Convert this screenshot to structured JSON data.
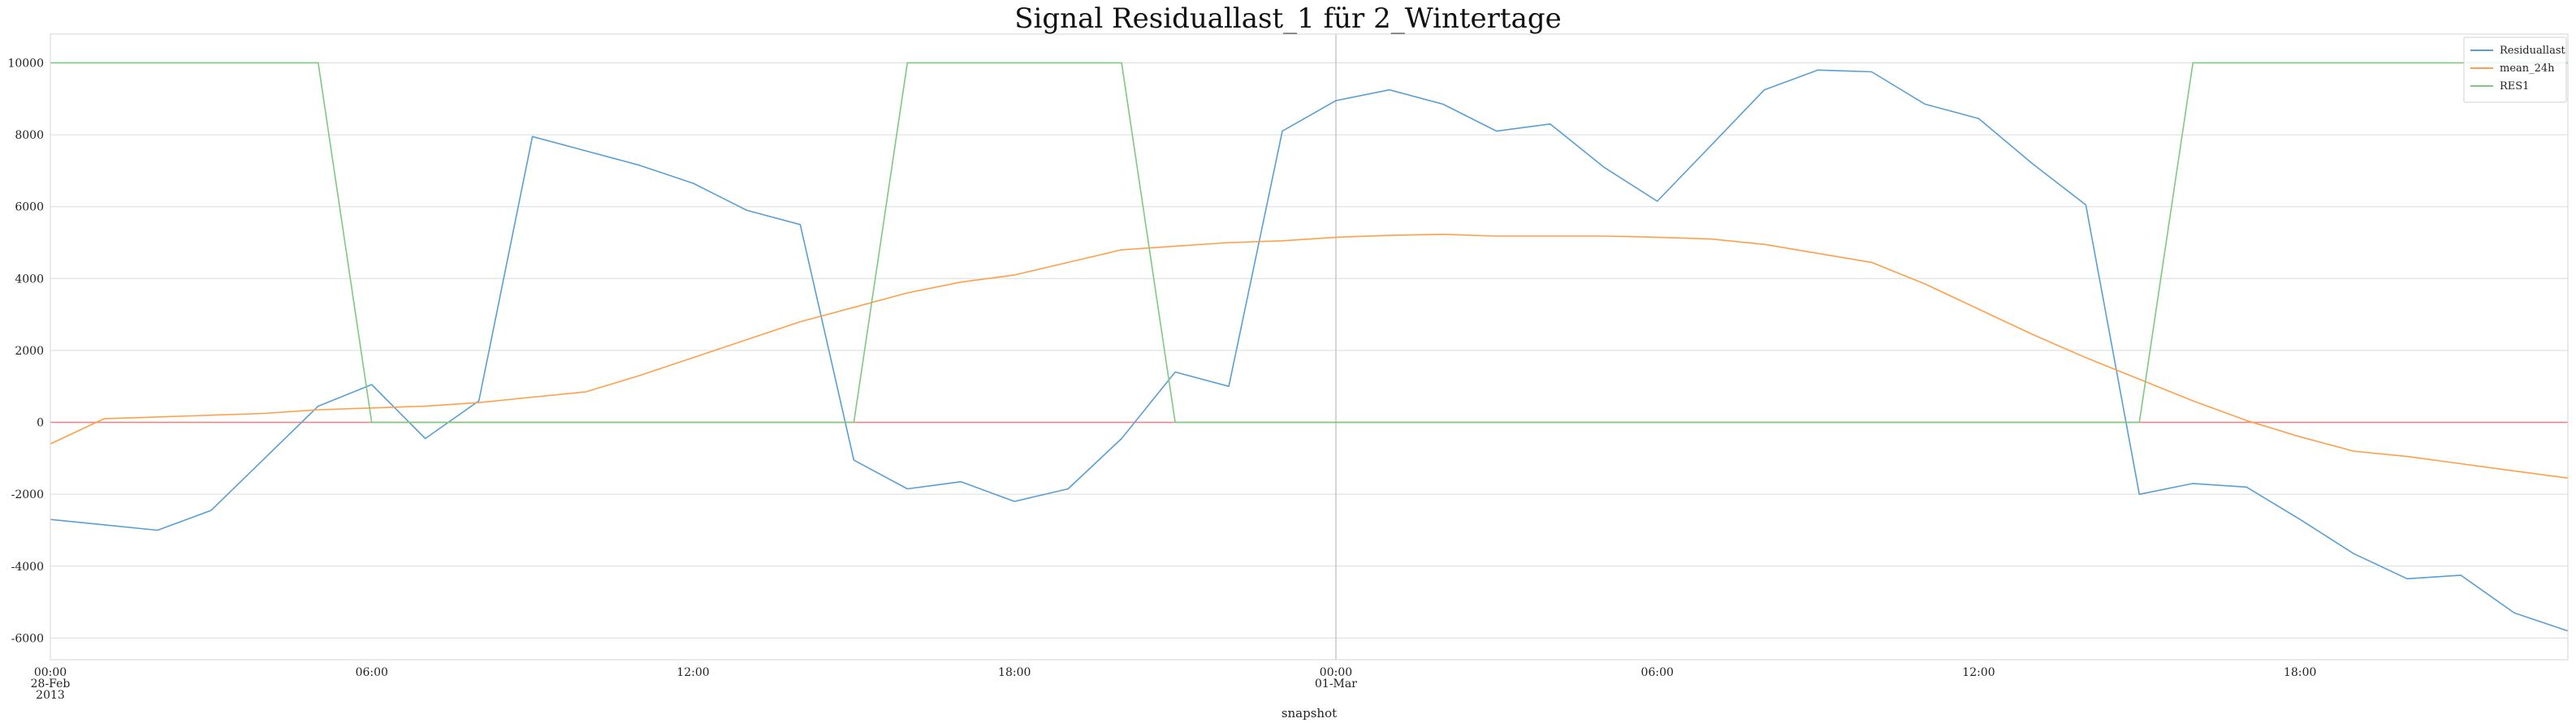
{
  "chart_data": {
    "type": "line",
    "title": "Signal Residuallast_1 für 2_Wintertage",
    "xlabel": "snapshot",
    "ylabel": "",
    "xlim": [
      0,
      47
    ],
    "ylim": [
      -6600,
      10800
    ],
    "yticks": [
      -6000,
      -4000,
      -2000,
      0,
      2000,
      4000,
      6000,
      8000,
      10000
    ],
    "xticks": [
      {
        "x": 0,
        "lines": [
          "00:00",
          "28-Feb",
          "2013"
        ]
      },
      {
        "x": 6,
        "lines": [
          "06:00"
        ]
      },
      {
        "x": 12,
        "lines": [
          "12:00"
        ]
      },
      {
        "x": 18,
        "lines": [
          "18:00"
        ]
      },
      {
        "x": 24,
        "lines": [
          "00:00",
          "01-Mar"
        ]
      },
      {
        "x": 30,
        "lines": [
          "06:00"
        ]
      },
      {
        "x": 36,
        "lines": [
          "12:00"
        ]
      },
      {
        "x": 42,
        "lines": [
          "18:00"
        ]
      }
    ],
    "grid": true,
    "legend_position": "top-right",
    "hline": {
      "y": 0,
      "color": "#f08080"
    },
    "vline": {
      "x": 24,
      "color": "#c8c8c8"
    },
    "x": [
      0,
      1,
      2,
      3,
      4,
      5,
      6,
      7,
      8,
      9,
      10,
      11,
      12,
      13,
      14,
      15,
      16,
      17,
      18,
      19,
      20,
      21,
      22,
      23,
      24,
      25,
      26,
      27,
      28,
      29,
      30,
      31,
      32,
      33,
      34,
      35,
      36,
      37,
      38,
      39,
      40,
      41,
      42,
      43,
      44,
      45,
      46,
      47
    ],
    "series": [
      {
        "name": "Residuallast",
        "color": "#5a9fd4",
        "values": [
          -2700,
          -2850,
          -3000,
          -2450,
          -1000,
          450,
          1050,
          -450,
          600,
          7950,
          7550,
          7150,
          6650,
          5900,
          5500,
          -1050,
          -1850,
          -1650,
          -2200,
          -1850,
          -450,
          1400,
          1000,
          8100,
          8950,
          9250,
          8850,
          8100,
          8300,
          7100,
          6150,
          7700,
          9250,
          9800,
          9750,
          8850,
          8450,
          7200,
          6050,
          -2000,
          -1700,
          -1800,
          -2700,
          -3650,
          -4350,
          -4250,
          -5300,
          -5800
        ]
      },
      {
        "name": "mean_24h",
        "color": "#ff9f4a",
        "values": [
          -600,
          100,
          150,
          200,
          250,
          350,
          400,
          450,
          550,
          700,
          850,
          1300,
          1800,
          2300,
          2800,
          3200,
          3600,
          3900,
          4100,
          4450,
          4800,
          4900,
          5000,
          5050,
          5150,
          5200,
          5230,
          5180,
          5180,
          5180,
          5150,
          5100,
          4950,
          4700,
          4450,
          3850,
          3150,
          2450,
          1800,
          1200,
          600,
          50,
          -400,
          -800,
          -950,
          -1150,
          -1350,
          -1550
        ]
      },
      {
        "name": "RES1",
        "color": "#7ec97e",
        "values": [
          10000,
          10000,
          10000,
          10000,
          10000,
          10000,
          0,
          0,
          0,
          0,
          0,
          0,
          0,
          0,
          0,
          0,
          10000,
          10000,
          10000,
          10000,
          10000,
          0,
          0,
          0,
          0,
          0,
          0,
          0,
          0,
          0,
          0,
          0,
          0,
          0,
          0,
          0,
          0,
          0,
          0,
          0,
          10000,
          10000,
          10000,
          10000,
          10000,
          10000,
          10000,
          10000
        ]
      }
    ]
  }
}
